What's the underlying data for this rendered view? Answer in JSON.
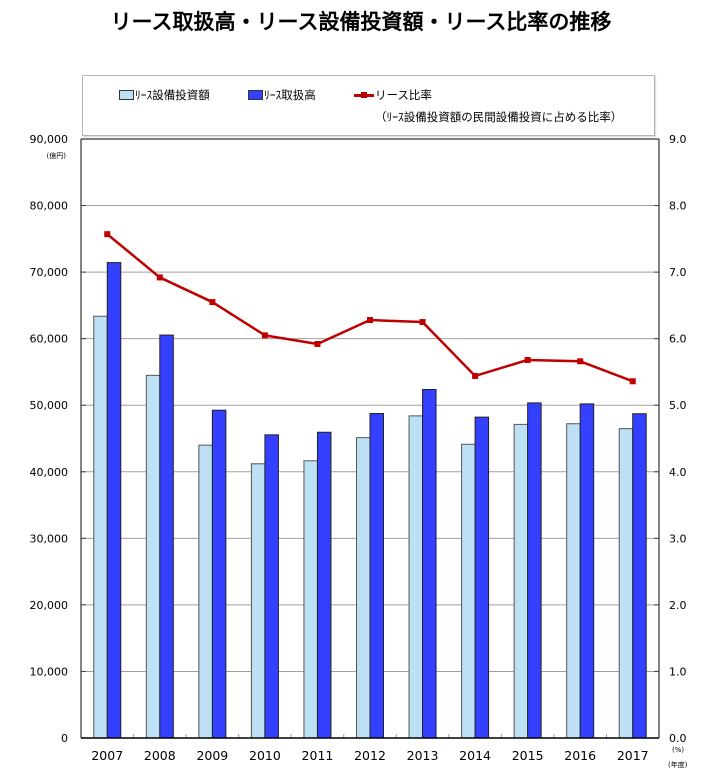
{
  "title": "リース取扱高・リース設備投資額・リース比率の推移",
  "legend": {
    "items": [
      {
        "label": "ﾘｰｽ設備投資額",
        "color": "#bde0f5",
        "type": "bar"
      },
      {
        "label": "ﾘｰｽ取扱高",
        "color": "#3340ff",
        "type": "bar"
      },
      {
        "label": "リース比率",
        "color": "#c00000",
        "type": "line"
      }
    ],
    "note": "（ﾘｰｽ設備投資額の民間設備投資に占める比率）"
  },
  "axes": {
    "left_unit": "(億円)",
    "right_unit": "(%)",
    "x_unit": "(年度)"
  },
  "chart_data": {
    "type": "bar+line",
    "title": "リース取扱高・リース設備投資額・リース比率の推移",
    "xlabel": "(年度)",
    "ylabel": "(億円)",
    "y2label": "(%)",
    "categories": [
      "2007",
      "2008",
      "2009",
      "2010",
      "2011",
      "2012",
      "2013",
      "2014",
      "2015",
      "2016",
      "2017"
    ],
    "series": [
      {
        "name": "ﾘｰｽ設備投資額",
        "type": "bar",
        "axis": "left",
        "color": "#bde0f5",
        "values": [
          63370,
          54490,
          44000,
          41200,
          41650,
          45130,
          48400,
          44130,
          47120,
          47220,
          46480
        ]
      },
      {
        "name": "ﾘｰｽ取扱高",
        "type": "bar",
        "axis": "left",
        "color": "#3340ff",
        "values": [
          71430,
          60540,
          49250,
          45550,
          45940,
          48750,
          52360,
          48210,
          50350,
          50200,
          48720
        ]
      },
      {
        "name": "リース比率",
        "type": "line",
        "axis": "right",
        "color": "#c00000",
        "values": [
          7.57,
          6.92,
          6.55,
          6.05,
          5.92,
          6.28,
          6.25,
          5.44,
          5.68,
          5.66,
          5.36
        ]
      }
    ],
    "ylim": [
      0,
      90000
    ],
    "y2lim": [
      0,
      9.0
    ],
    "yticks": [
      "0",
      "10,000",
      "20,000",
      "30,000",
      "40,000",
      "50,000",
      "60,000",
      "70,000",
      "80,000",
      "90,000"
    ],
    "y2ticks": [
      "0.0",
      "1.0",
      "2.0",
      "3.0",
      "4.0",
      "5.0",
      "6.0",
      "7.0",
      "8.0",
      "9.0"
    ],
    "grid": true,
    "legend_position": "top"
  }
}
